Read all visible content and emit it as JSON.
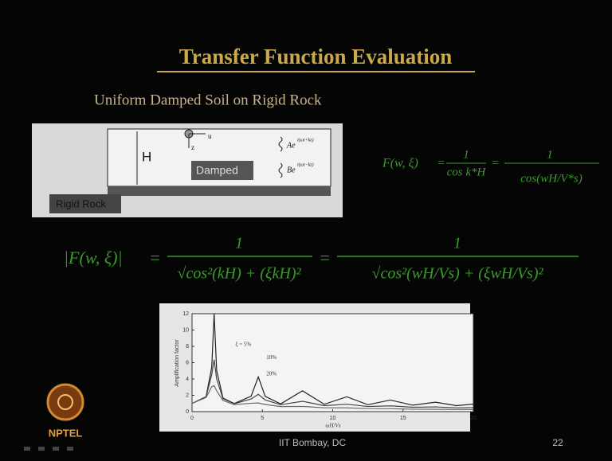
{
  "slide": {
    "title": "Transfer Function Evaluation",
    "subtitle": "Uniform Damped Soil on Rigid Rock",
    "diagram": {
      "h_label": "H",
      "damped_label": "Damped",
      "rock_label": "Rigid Rock",
      "u_label": "u",
      "z_label": "z",
      "wave_a_base": "Ae",
      "wave_a_exp": "i(ωt+kz)",
      "wave_b_base": "Be",
      "wave_b_exp": "i(ωt−kz)"
    },
    "equation_1": {
      "lhs": "F(w, ξ)",
      "eq": "=",
      "num_1": "1",
      "den_1": "cos k*H",
      "num_2": "1",
      "den_2": "cos(wH/V*s)"
    },
    "equation_2": {
      "lhs": "|F(w, ξ)|",
      "eq": "=",
      "num_1": "1",
      "den_1": "√cos²(kH) + (ξkH)²",
      "num_2": "1",
      "den_2": "√cos²(wH/Vs) + (ξwH/Vs)²"
    },
    "figure": {
      "y_label": "Amplification factor",
      "x_label": "ωH/Vs",
      "xlim": [
        0,
        20
      ],
      "ylim": [
        0,
        12
      ],
      "xticks": [
        0,
        5,
        10,
        15,
        20
      ],
      "yticks": [
        0,
        2,
        4,
        6,
        8,
        10,
        12
      ],
      "x": [
        0,
        1,
        1.4,
        1.57,
        1.75,
        2.2,
        3,
        4.2,
        4.71,
        5.2,
        6.3,
        7.85,
        9.4,
        11,
        12.5,
        14.1,
        15.7,
        17.3,
        18.8,
        20
      ],
      "series": [
        {
          "name": "ξ = 5%",
          "color": "#222222",
          "values": [
            1,
            1.84,
            5.44,
            12,
            5.04,
            1.67,
            1.0,
            1.88,
            4.25,
            1.87,
            0.95,
            2.55,
            0.9,
            1.82,
            0.85,
            1.42,
            0.79,
            1.16,
            0.73,
            0.93
          ]
        },
        {
          "name": "10%",
          "color": "#444444",
          "values": [
            1,
            1.82,
            4.54,
            6.37,
            4.0,
            1.59,
            0.97,
            1.55,
            2.12,
            1.43,
            0.85,
            1.27,
            0.73,
            0.91,
            0.63,
            0.71,
            0.54,
            0.58,
            0.47,
            0.49
          ]
        },
        {
          "name": "20%",
          "color": "#666666",
          "values": [
            1,
            1.74,
            3.05,
            3.18,
            2.55,
            1.36,
            0.86,
            1.03,
            1.06,
            0.88,
            0.62,
            0.64,
            0.47,
            0.46,
            0.37,
            0.36,
            0.3,
            0.29,
            0.26,
            0.25
          ]
        }
      ]
    },
    "footer": {
      "logo_text": "NPTEL",
      "center": "IIT Bombay, DC",
      "page": "22"
    }
  }
}
